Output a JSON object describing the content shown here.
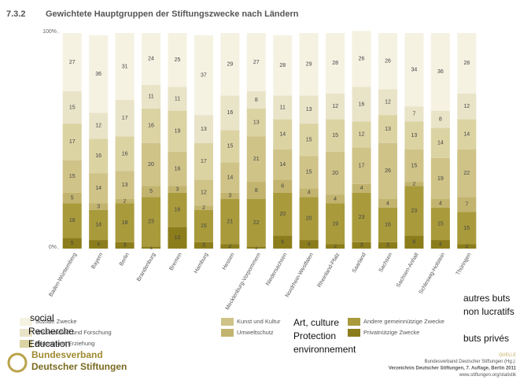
{
  "chart_data": {
    "type": "bar",
    "stacked": true,
    "number": "7.3.2",
    "title": "Gewichtete Hauptgruppen der Stiftungszwecke nach Ländern",
    "categories": [
      "Baden-Württemberg",
      "Bayern",
      "Berlin",
      "Brandenburg",
      "Bremen",
      "Hamburg",
      "Hessen",
      "Mecklenburg-Vorpommern",
      "Niedersachsen",
      "Nordrhein-Westfalen",
      "Rheinland-Pfalz",
      "Saarland",
      "Sachsen",
      "Sachsen-Anhalt",
      "Schleswig-Holstein",
      "Thüringen"
    ],
    "series": [
      {
        "name": "Privatnützige Zwecke",
        "color": "#8c7d1c",
        "values": [
          5,
          4,
          3,
          1,
          10,
          3,
          2,
          1,
          6,
          4,
          2,
          3,
          3,
          6,
          4,
          2
        ]
      },
      {
        "name": "Andere gemeinnützige Zwecke",
        "color": "#a99b3c",
        "values": [
          16,
          14,
          18,
          23,
          16,
          15,
          21,
          22,
          20,
          20,
          19,
          23,
          16,
          23,
          15,
          15
        ]
      },
      {
        "name": "Umweltschutz",
        "color": "#c2b46e",
        "values": [
          5,
          3,
          2,
          5,
          3,
          2,
          3,
          8,
          6,
          4,
          4,
          4,
          4,
          2,
          4,
          7
        ]
      },
      {
        "name": "Kunst und Kultur",
        "color": "#cfc388",
        "values": [
          15,
          14,
          13,
          20,
          16,
          12,
          14,
          21,
          14,
          15,
          20,
          17,
          26,
          15,
          19,
          22
        ]
      },
      {
        "name": "Bildung und Erziehung",
        "color": "#dcd3a3",
        "values": [
          17,
          16,
          16,
          16,
          19,
          17,
          15,
          13,
          14,
          15,
          15,
          12,
          13,
          13,
          14,
          14
        ]
      },
      {
        "name": "Wissenschaft und Forschung",
        "color": "#e9e4c8",
        "values": [
          15,
          12,
          17,
          11,
          11,
          13,
          16,
          8,
          11,
          13,
          12,
          16,
          12,
          7,
          8,
          12
        ]
      },
      {
        "name": "Soziale Zwecke",
        "color": "#f5f2e2",
        "values": [
          27,
          36,
          31,
          24,
          25,
          37,
          29,
          27,
          28,
          29,
          28,
          26,
          26,
          34,
          36,
          28
        ]
      }
    ],
    "ylim": [
      0,
      100
    ],
    "yticks": [
      {
        "value": 0,
        "label": "0%"
      },
      {
        "value": 100,
        "label": "100%"
      }
    ],
    "annotations": [
      "social",
      "Recherche",
      "Education",
      "Art, culture",
      "Protection",
      "environnement",
      "autres buts",
      "non lucratifs",
      "buts privés"
    ]
  },
  "logo": [
    "Bundesverband",
    "Deutscher Stiftungen"
  ],
  "source": [
    "QUELLE",
    "Bundesverband Deutscher Stiftungen (Hg.):",
    "Verzeichnis Deutscher Stiftungen, 7. Auflage, Berlin 2011",
    "www.stiftungen.org/statistik"
  ]
}
